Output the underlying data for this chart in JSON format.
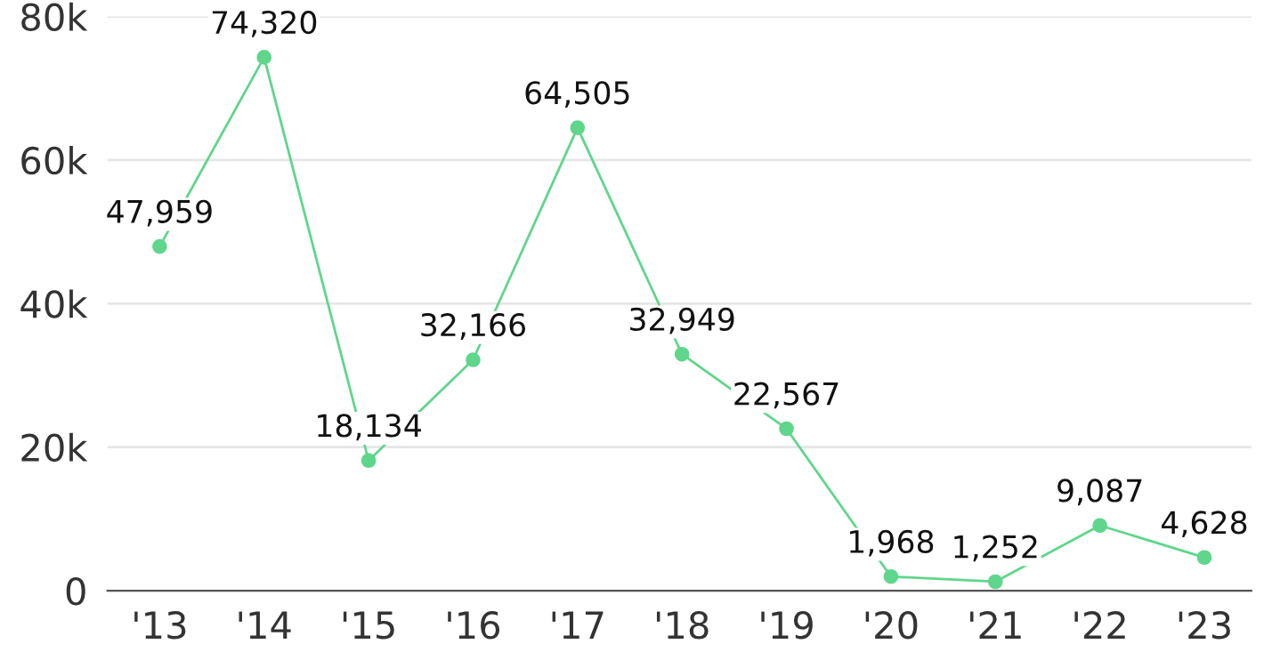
{
  "chart_data": {
    "type": "line",
    "categories": [
      "'13",
      "'14",
      "'15",
      "'16",
      "'17",
      "'18",
      "'19",
      "'20",
      "'21",
      "'22",
      "'23"
    ],
    "series": [
      {
        "color": "#5fd68b",
        "values": [
          47959,
          74320,
          18134,
          32166,
          64505,
          32949,
          22567,
          1968,
          1252,
          9087,
          4628
        ],
        "value_labels": [
          "47,959",
          "74,320",
          "18,134",
          "32,166",
          "64,505",
          "32,949",
          "22,567",
          "1,968",
          "1,252",
          "9,087",
          "4,628"
        ]
      }
    ],
    "ylim": [
      0,
      80000
    ],
    "yticks": [
      {
        "value": 0,
        "label": "0"
      },
      {
        "value": 20000,
        "label": "20k"
      },
      {
        "value": 40000,
        "label": "40k"
      },
      {
        "value": 60000,
        "label": "60k"
      },
      {
        "value": 80000,
        "label": "80k"
      }
    ],
    "grid": "y",
    "marker": "circle",
    "line_style": "solid",
    "legend": false
  }
}
